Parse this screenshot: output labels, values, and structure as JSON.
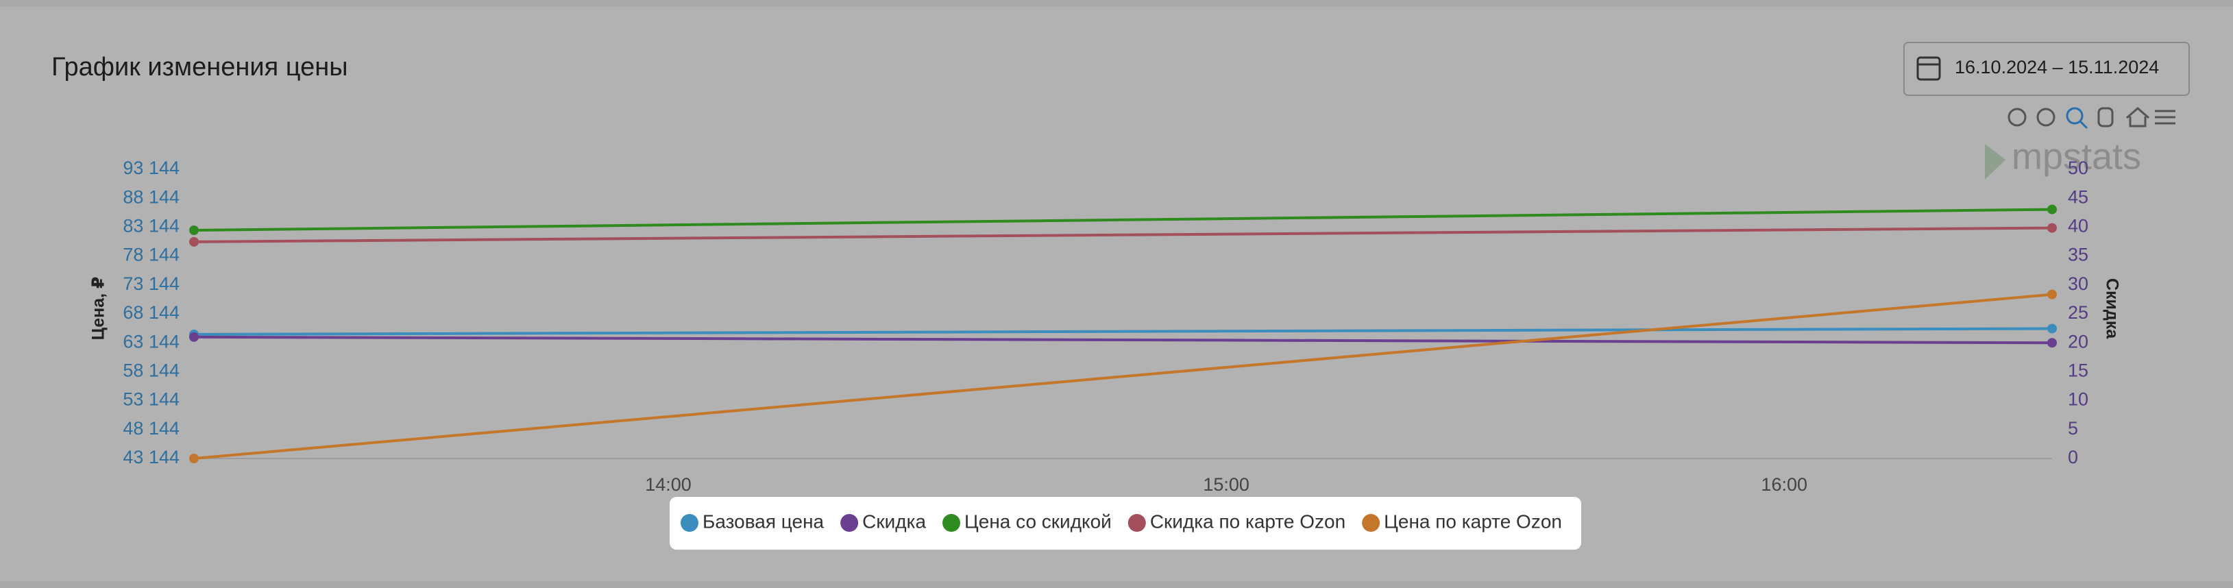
{
  "header": {
    "title": "График изменения цены",
    "date_range": "16.10.2024 – 15.11.2024",
    "logo": "mpstats"
  },
  "chart_data": {
    "type": "line",
    "x": [
      13.15,
      16.48
    ],
    "xlim": [
      13.15,
      16.48
    ],
    "xticks": [
      {
        "value": 14,
        "label": "14:00"
      },
      {
        "value": 15,
        "label": "15:00"
      },
      {
        "value": 16,
        "label": "16:00"
      }
    ],
    "ylabel": "Цена, ₽",
    "ylim": [
      43144,
      93144
    ],
    "yticks": [
      {
        "value": 43144,
        "label": "43 144"
      },
      {
        "value": 48144,
        "label": "48 144"
      },
      {
        "value": 53144,
        "label": "53 144"
      },
      {
        "value": 58144,
        "label": "58 144"
      },
      {
        "value": 63144,
        "label": "63 144"
      },
      {
        "value": 68144,
        "label": "68 144"
      },
      {
        "value": 73144,
        "label": "73 144"
      },
      {
        "value": 78144,
        "label": "78 144"
      },
      {
        "value": 83144,
        "label": "83 144"
      },
      {
        "value": 88144,
        "label": "88 144"
      },
      {
        "value": 93144,
        "label": "93 144"
      }
    ],
    "y2label": "Скидка",
    "y2lim": [
      0,
      50
    ],
    "y2ticks": [
      0,
      5,
      10,
      15,
      20,
      25,
      30,
      35,
      40,
      45,
      50
    ],
    "grid": false,
    "series": [
      {
        "name": "Базовая цена",
        "color": "#3a8dbc",
        "values": [
          64600,
          65600
        ]
      },
      {
        "name": "Скидка",
        "color": "#6a3f90",
        "values": [
          21,
          20
        ],
        "axis": "y2"
      },
      {
        "name": "Цена со скидкой",
        "color": "#2f8a1f",
        "values": [
          82600,
          86200
        ]
      },
      {
        "name": "Скидка по карте Ozon",
        "color": "#a4505c",
        "values": [
          80600,
          83000
        ]
      },
      {
        "name": "Цена по карте Ozon",
        "color": "#c4772a",
        "values": [
          43144,
          71500
        ]
      }
    ]
  }
}
